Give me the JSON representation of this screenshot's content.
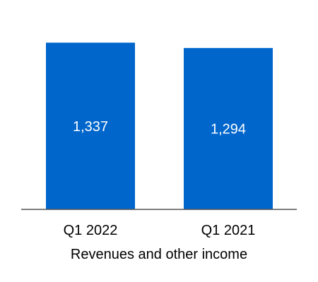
{
  "chart_data": {
    "type": "bar",
    "categories": [
      "Q1 2022",
      "Q1 2021"
    ],
    "values": [
      1337,
      1294
    ],
    "data_labels": [
      "1,337",
      "1,294"
    ],
    "xlabel": "Revenues and other income",
    "ylabel": "",
    "ylim": [
      0,
      1600
    ],
    "grid": false,
    "colors": {
      "bar": "#0066cc",
      "axis": "#555555",
      "data_label": "#ffffff",
      "text": "#000000"
    }
  }
}
